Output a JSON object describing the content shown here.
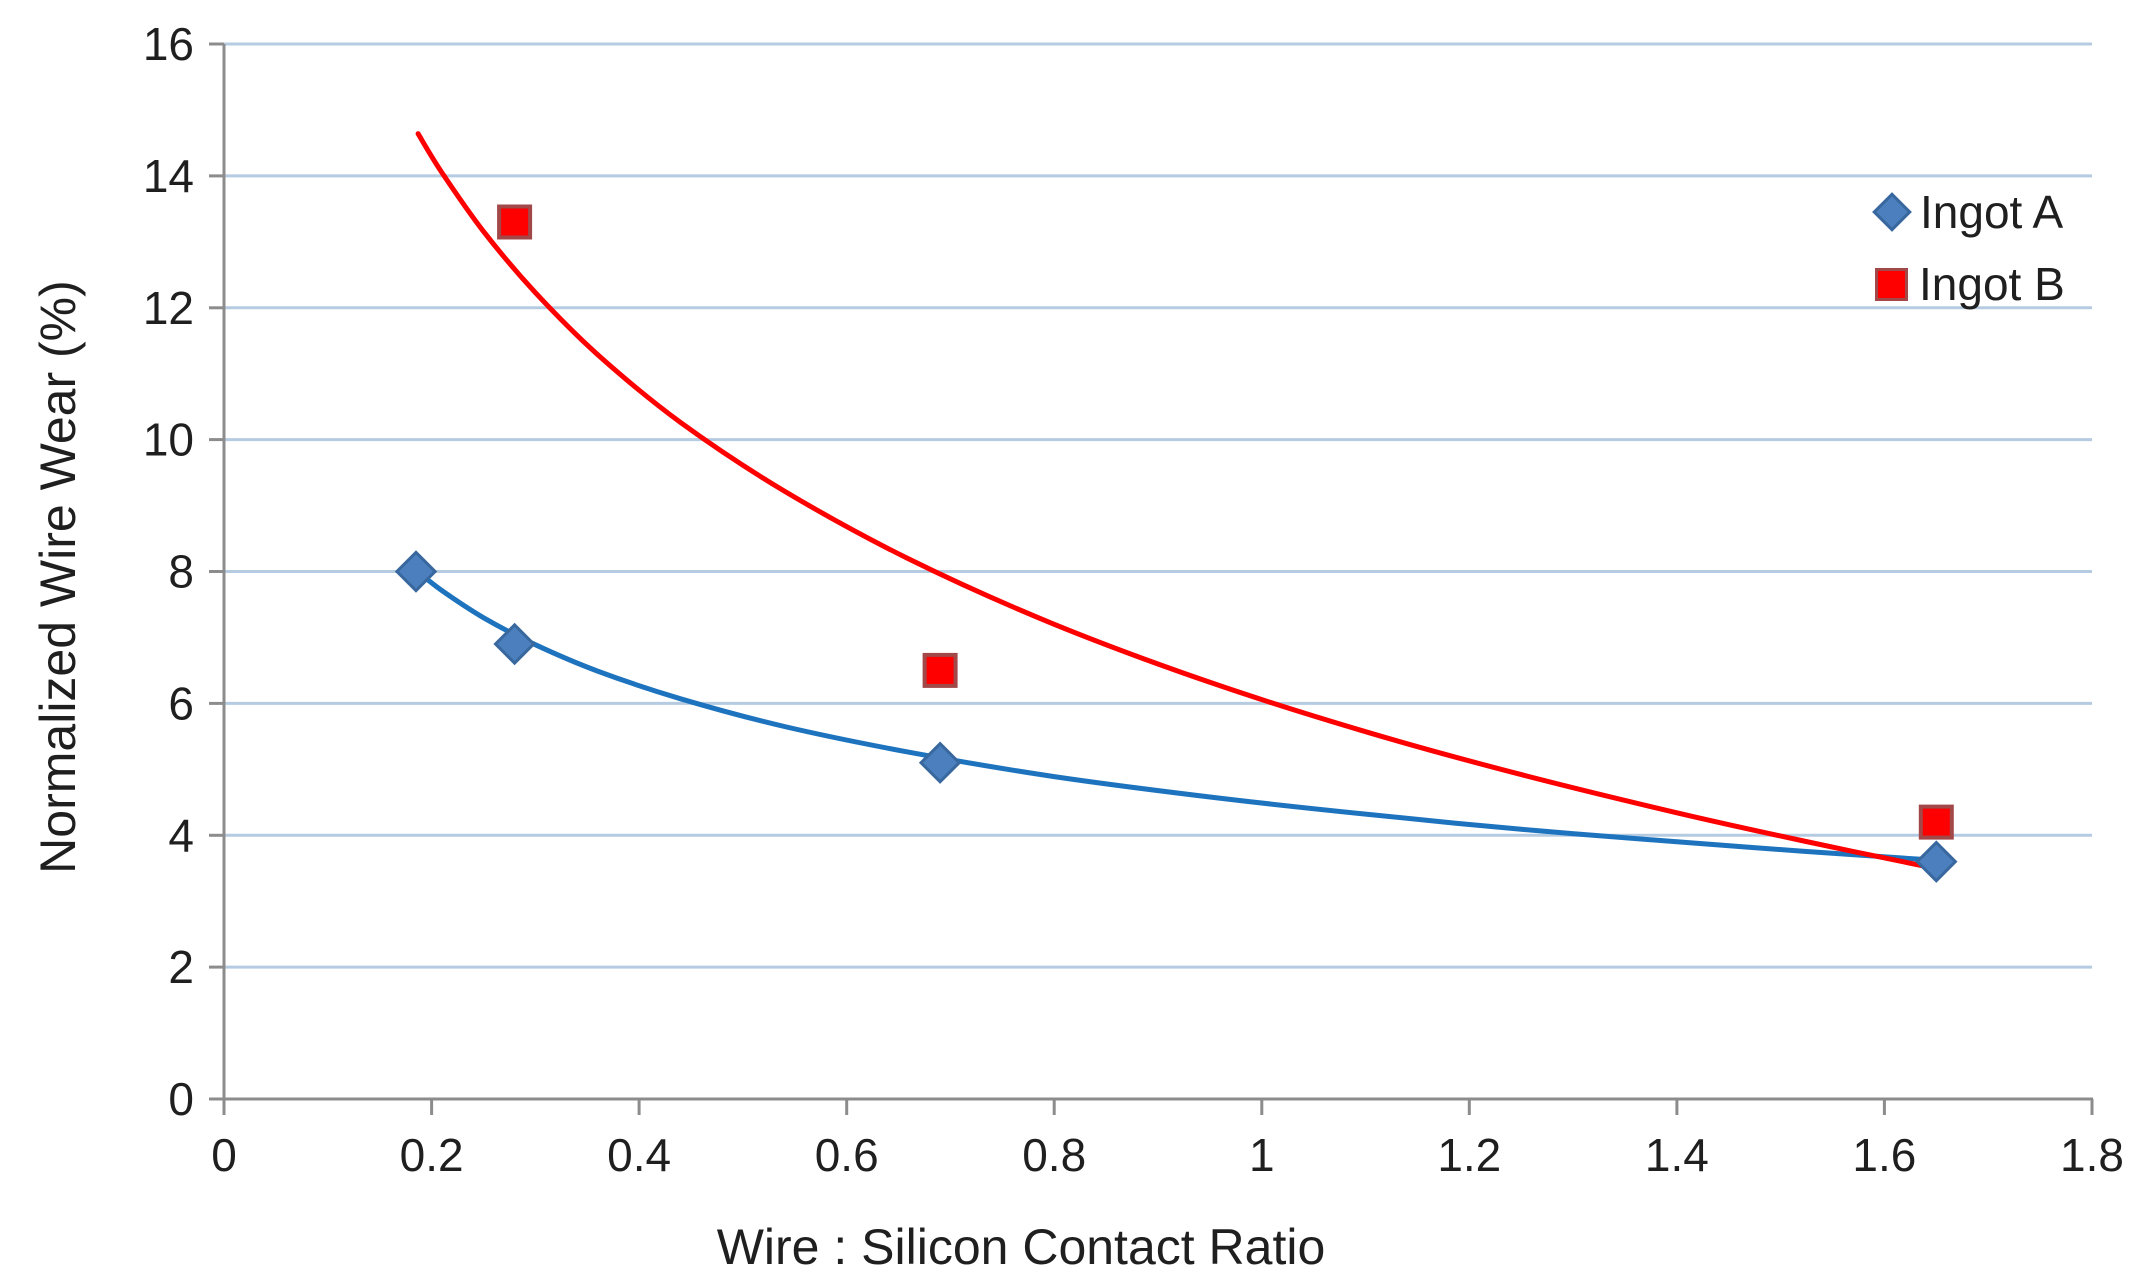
{
  "figure": {
    "background": "#ffffff"
  },
  "chart_data": {
    "type": "scatter",
    "title": "",
    "xlabel": "Wire : Silicon Contact Ratio",
    "ylabel": "Normalized Wire Wear (%)",
    "xlim": [
      0,
      1.8
    ],
    "ylim": [
      0,
      16
    ],
    "x_ticks": [
      0,
      0.2,
      0.4,
      0.6,
      0.8,
      1,
      1.2,
      1.4,
      1.6,
      1.8
    ],
    "x_tick_labels": [
      "0",
      "0.2",
      "0.4",
      "0.6",
      "0.8",
      "1",
      "1.2",
      "1.4",
      "1.6",
      "1.8"
    ],
    "y_ticks": [
      0,
      2,
      4,
      6,
      8,
      10,
      12,
      14,
      16
    ],
    "y_tick_labels": [
      "0",
      "2",
      "4",
      "6",
      "8",
      "10",
      "12",
      "14",
      "16"
    ],
    "grid": "horizontal-only",
    "legend_position": "inside-top-right",
    "colors": {
      "gridline": "#b5cbe2",
      "axis": "#8c8c8c",
      "text": "#1f1f1f"
    },
    "series": [
      {
        "name": "Ingot A",
        "marker": "diamond",
        "marker_color": "#4c7fbe",
        "marker_border": "#38689e",
        "trend_color": "#1e73be",
        "points": [
          [
            0.185,
            8.0
          ],
          [
            0.28,
            6.9
          ],
          [
            0.69,
            5.1
          ],
          [
            1.65,
            3.6
          ]
        ],
        "trendline_points": [
          [
            0.185,
            8.02
          ],
          [
            0.21,
            7.71
          ],
          [
            0.25,
            7.3
          ],
          [
            0.3,
            6.89
          ],
          [
            0.36,
            6.49
          ],
          [
            0.44,
            6.07
          ],
          [
            0.54,
            5.65
          ],
          [
            0.66,
            5.26
          ],
          [
            0.8,
            4.89
          ],
          [
            0.95,
            4.58
          ],
          [
            1.1,
            4.32
          ],
          [
            1.25,
            4.09
          ],
          [
            1.4,
            3.9
          ],
          [
            1.52,
            3.76
          ],
          [
            1.65,
            3.62
          ]
        ]
      },
      {
        "name": "Ingot B",
        "marker": "square",
        "marker_color": "#fe0000",
        "marker_border": "#a24848",
        "trend_color": "#fe0000",
        "points": [
          [
            0.28,
            13.3
          ],
          [
            0.69,
            6.5
          ],
          [
            1.65,
            4.2
          ]
        ],
        "trendline_points": [
          [
            0.187,
            14.64
          ],
          [
            0.21,
            14.05
          ],
          [
            0.25,
            13.16
          ],
          [
            0.3,
            12.23
          ],
          [
            0.36,
            11.29
          ],
          [
            0.44,
            10.26
          ],
          [
            0.54,
            9.22
          ],
          [
            0.66,
            8.19
          ],
          [
            0.8,
            7.2
          ],
          [
            0.95,
            6.32
          ],
          [
            1.1,
            5.57
          ],
          [
            1.25,
            4.92
          ],
          [
            1.4,
            4.34
          ],
          [
            1.52,
            3.92
          ],
          [
            1.648,
            3.5
          ]
        ]
      }
    ]
  }
}
